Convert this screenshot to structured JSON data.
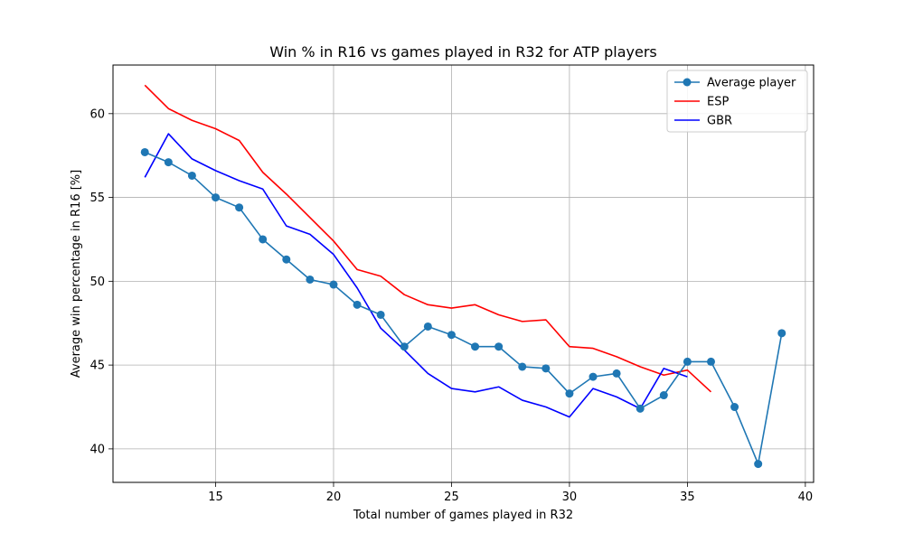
{
  "chart_data": {
    "type": "line",
    "title": "Win % in R16 vs games played in R32 for ATP players",
    "xlabel": "Total number of games played in R32",
    "ylabel": "Average win percentage in R16 [%]",
    "xlim": [
      10.65,
      40.35
    ],
    "ylim": [
      38.0,
      62.9
    ],
    "xticks": [
      15,
      20,
      25,
      30,
      35,
      40
    ],
    "yticks": [
      40,
      45,
      50,
      55,
      60
    ],
    "grid": true,
    "legend_position": "top-right",
    "series": [
      {
        "name": "Average player",
        "color": "#1f77b4",
        "marker": "circle",
        "x": [
          12,
          13,
          14,
          15,
          16,
          17,
          18,
          19,
          20,
          21,
          22,
          23,
          24,
          25,
          26,
          27,
          28,
          29,
          30,
          31,
          32,
          33,
          34,
          35,
          36,
          37,
          38,
          39
        ],
        "y": [
          57.7,
          57.1,
          56.3,
          55.0,
          54.4,
          52.5,
          51.3,
          50.1,
          49.8,
          48.6,
          48.0,
          46.1,
          47.3,
          46.8,
          46.1,
          46.1,
          44.9,
          44.8,
          43.3,
          44.3,
          44.5,
          42.4,
          43.2,
          45.2,
          45.2,
          42.5,
          39.1,
          46.9
        ]
      },
      {
        "name": "ESP",
        "color": "#ff0000",
        "marker": "none",
        "x": [
          12,
          13,
          14,
          15,
          16,
          17,
          18,
          19,
          20,
          21,
          22,
          23,
          24,
          25,
          26,
          27,
          28,
          29,
          30,
          31,
          32,
          33,
          34,
          35,
          36
        ],
        "y": [
          61.7,
          60.3,
          59.6,
          59.1,
          58.4,
          56.5,
          55.2,
          53.8,
          52.4,
          50.7,
          50.3,
          49.2,
          48.6,
          48.4,
          48.6,
          48.0,
          47.6,
          47.7,
          46.1,
          46.0,
          45.5,
          44.9,
          44.4,
          44.7,
          43.4
        ]
      },
      {
        "name": "GBR",
        "color": "#0000ff",
        "marker": "none",
        "x": [
          12,
          13,
          14,
          15,
          16,
          17,
          18,
          19,
          20,
          21,
          22,
          23,
          24,
          25,
          26,
          27,
          28,
          29,
          30,
          31,
          32,
          33,
          34,
          35
        ],
        "y": [
          56.2,
          58.8,
          57.3,
          56.6,
          56.0,
          55.5,
          53.3,
          52.8,
          51.6,
          49.6,
          47.2,
          45.9,
          44.5,
          43.6,
          43.4,
          43.7,
          42.9,
          42.5,
          41.9,
          43.6,
          43.1,
          42.4,
          44.8,
          44.3
        ]
      }
    ]
  }
}
